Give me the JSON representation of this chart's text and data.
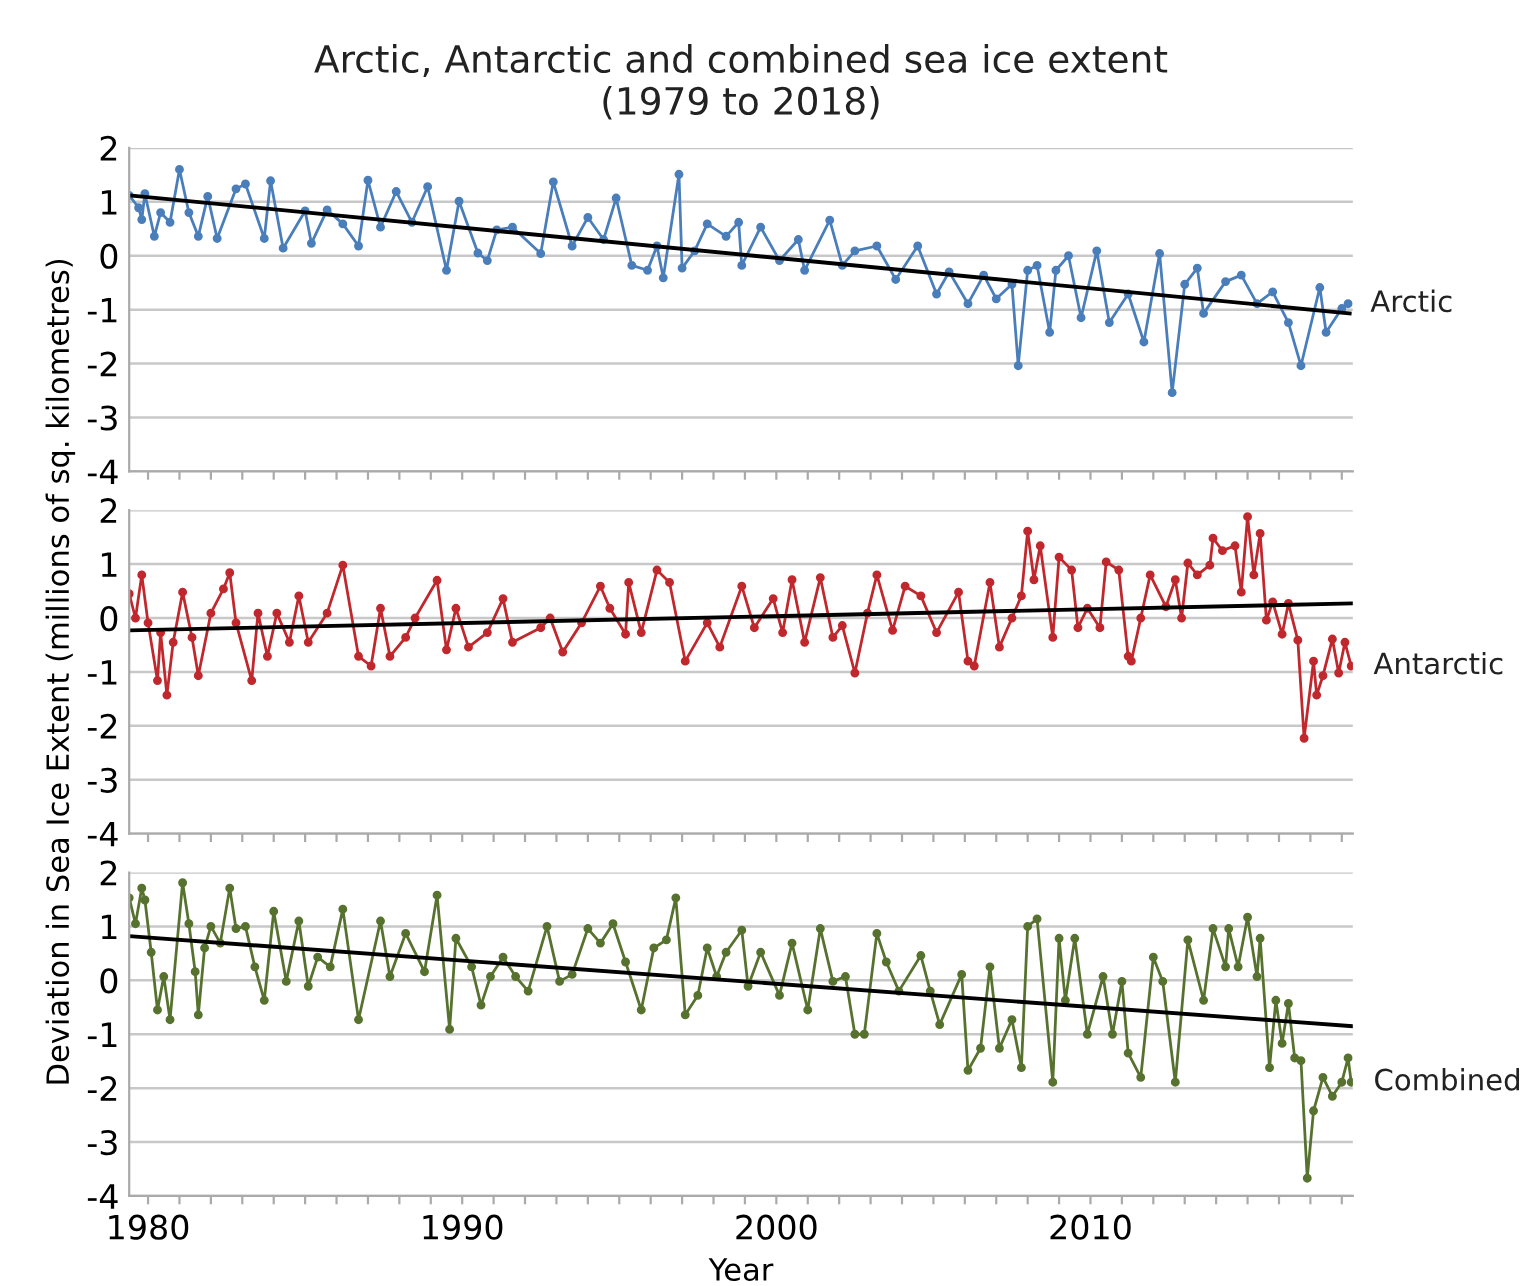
{
  "chart_data": [
    {
      "type": "line",
      "title": "Arctic, Antarctic and combined sea ice extent\n(1979 to 2018)",
      "xlim": [
        1979.4,
        2018.35
      ],
      "ylim": [
        -4,
        2
      ],
      "yticks": [
        -4,
        -3,
        -2,
        -1,
        0,
        1,
        2
      ],
      "xticks": [
        {
          "value": 1980,
          "label": null
        },
        {
          "value": 1981,
          "label": null
        },
        {
          "value": 1982,
          "label": null
        },
        {
          "value": 1983,
          "label": null
        },
        {
          "value": 1984,
          "label": null
        },
        {
          "value": 1985,
          "label": null
        },
        {
          "value": 1986,
          "label": null
        },
        {
          "value": 1987,
          "label": null
        },
        {
          "value": 1988,
          "label": null
        },
        {
          "value": 1989,
          "label": null
        },
        {
          "value": 1990,
          "label": null
        },
        {
          "value": 1991,
          "label": null
        },
        {
          "value": 1992,
          "label": null
        },
        {
          "value": 1993,
          "label": null
        },
        {
          "value": 1994,
          "label": null
        },
        {
          "value": 1995,
          "label": null
        },
        {
          "value": 1996,
          "label": null
        },
        {
          "value": 1997,
          "label": null
        },
        {
          "value": 1998,
          "label": null
        },
        {
          "value": 1999,
          "label": null
        },
        {
          "value": 2000,
          "label": null
        },
        {
          "value": 2001,
          "label": null
        },
        {
          "value": 2002,
          "label": null
        },
        {
          "value": 2003,
          "label": null
        },
        {
          "value": 2004,
          "label": null
        },
        {
          "value": 2005,
          "label": null
        },
        {
          "value": 2006,
          "label": null
        },
        {
          "value": 2007,
          "label": null
        },
        {
          "value": 2008,
          "label": null
        },
        {
          "value": 2009,
          "label": null
        },
        {
          "value": 2010,
          "label": null
        },
        {
          "value": 2011,
          "label": null
        },
        {
          "value": 2012,
          "label": null
        },
        {
          "value": 2013,
          "label": null
        },
        {
          "value": 2014,
          "label": null
        },
        {
          "value": 2015,
          "label": null
        },
        {
          "value": 2016,
          "label": null
        },
        {
          "value": 2017,
          "label": null
        },
        {
          "value": 2018,
          "label": null
        }
      ],
      "tick_labels": "y",
      "grid": "y",
      "legend": false,
      "series": [
        {
          "name": "Arctic",
          "color": "#4a7ebb",
          "marker": "circle",
          "x": [
            1979.4,
            1979.7,
            1979.8,
            1979.9,
            1980.2,
            1980.4,
            1980.7,
            1981.0,
            1981.3,
            1981.6,
            1981.9,
            1982.2,
            1982.8,
            1983.1,
            1983.7,
            1983.9,
            1984.3,
            1985.0,
            1985.2,
            1985.7,
            1986.2,
            1986.7,
            1987.0,
            1987.4,
            1987.9,
            1988.4,
            1988.9,
            1989.5,
            1989.9,
            1990.5,
            1990.8,
            1991.1,
            1991.6,
            1992.5,
            1992.9,
            1993.5,
            1994.0,
            1994.5,
            1994.9,
            1995.4,
            1995.9,
            1996.2,
            1996.4,
            1996.9,
            1997.0,
            1997.4,
            1997.8,
            1998.4,
            1998.8,
            1998.9,
            1999.5,
            2000.1,
            2000.7,
            2000.9,
            2001.7,
            2002.1,
            2002.5,
            2003.2,
            2003.8,
            2004.5,
            2005.1,
            2005.5,
            2006.1,
            2006.6,
            2007.0,
            2007.5,
            2007.7,
            2008.0,
            2008.3,
            2008.7,
            2008.9,
            2009.3,
            2009.7,
            2010.2,
            2010.6,
            2011.2,
            2011.7,
            2012.2,
            2012.6,
            2013.0,
            2013.4,
            2013.6,
            2014.3,
            2014.8,
            2015.3,
            2015.8,
            2016.3,
            2016.7,
            2017.3,
            2017.5,
            2018.0,
            2018.2
          ],
          "values": [
            1.12,
            0.89,
            0.67,
            1.15,
            0.36,
            0.8,
            0.62,
            1.6,
            0.8,
            0.36,
            1.1,
            0.32,
            1.24,
            1.33,
            0.32,
            1.39,
            0.14,
            0.83,
            0.23,
            0.85,
            0.59,
            0.18,
            1.4,
            0.53,
            1.19,
            0.62,
            1.28,
            -0.27,
            1.01,
            0.05,
            -0.09,
            0.48,
            0.53,
            0.04,
            1.37,
            0.18,
            0.71,
            0.3,
            1.07,
            -0.18,
            -0.27,
            0.18,
            -0.41,
            1.51,
            -0.23,
            0.09,
            0.59,
            0.36,
            0.62,
            -0.18,
            0.53,
            -0.09,
            0.3,
            -0.27,
            0.66,
            -0.18,
            0.09,
            0.18,
            -0.44,
            0.18,
            -0.71,
            -0.3,
            -0.89,
            -0.36,
            -0.8,
            -0.53,
            -2.04,
            -0.27,
            -0.18,
            -1.42,
            -0.27,
            0,
            -1.15,
            0.09,
            -1.24,
            -0.71,
            -1.6,
            0.04,
            -2.54,
            -0.53,
            -0.23,
            -1.07,
            -0.48,
            -0.36,
            -0.89,
            -0.67,
            -1.24,
            -2.04,
            -0.59,
            -1.42,
            -0.98,
            -0.89
          ]
        },
        {
          "type": "line",
          "color": "#000000",
          "marker": "none",
          "x": [
            1979.4,
            2018.25
          ],
          "values": [
            1.12,
            -1.07
          ]
        }
      ]
    },
    {
      "type": "line",
      "ylabel": "Deviation in Sea Ice Extent (millions of sq. kilometres)",
      "xlim": [
        1979.4,
        2018.35
      ],
      "ylim": [
        -4,
        2
      ],
      "yticks": [
        -4,
        -3,
        -2,
        -1,
        0,
        1,
        2
      ],
      "xticks": [
        {
          "value": 1980,
          "label": null
        },
        {
          "value": 1981,
          "label": null
        },
        {
          "value": 1982,
          "label": null
        },
        {
          "value": 1983,
          "label": null
        },
        {
          "value": 1984,
          "label": null
        },
        {
          "value": 1985,
          "label": null
        },
        {
          "value": 1986,
          "label": null
        },
        {
          "value": 1987,
          "label": null
        },
        {
          "value": 1988,
          "label": null
        },
        {
          "value": 1989,
          "label": null
        },
        {
          "value": 1990,
          "label": null
        },
        {
          "value": 1991,
          "label": null
        },
        {
          "value": 1992,
          "label": null
        },
        {
          "value": 1993,
          "label": null
        },
        {
          "value": 1994,
          "label": null
        },
        {
          "value": 1995,
          "label": null
        },
        {
          "value": 1996,
          "label": null
        },
        {
          "value": 1997,
          "label": null
        },
        {
          "value": 1998,
          "label": null
        },
        {
          "value": 1999,
          "label": null
        },
        {
          "value": 2000,
          "label": null
        },
        {
          "value": 2001,
          "label": null
        },
        {
          "value": 2002,
          "label": null
        },
        {
          "value": 2003,
          "label": null
        },
        {
          "value": 2004,
          "label": null
        },
        {
          "value": 2005,
          "label": null
        },
        {
          "value": 2006,
          "label": null
        },
        {
          "value": 2007,
          "label": null
        },
        {
          "value": 2008,
          "label": null
        },
        {
          "value": 2009,
          "label": null
        },
        {
          "value": 2010,
          "label": null
        },
        {
          "value": 2011,
          "label": null
        },
        {
          "value": 2012,
          "label": null
        },
        {
          "value": 2013,
          "label": null
        },
        {
          "value": 2014,
          "label": null
        },
        {
          "value": 2015,
          "label": null
        },
        {
          "value": 2016,
          "label": null
        },
        {
          "value": 2017,
          "label": null
        },
        {
          "value": 2018,
          "label": null
        }
      ],
      "tick_labels": "y",
      "grid": "y",
      "legend": false,
      "series": [
        {
          "name": "Antarctic",
          "color": "#c0282d",
          "marker": "circle",
          "x": [
            1979.4,
            1979.6,
            1979.8,
            1980.0,
            1980.3,
            1980.4,
            1980.6,
            1980.8,
            1981.1,
            1981.4,
            1981.6,
            1982.0,
            1982.4,
            1982.6,
            1982.8,
            1983.3,
            1983.5,
            1983.8,
            1984.1,
            1984.5,
            1984.8,
            1985.1,
            1985.7,
            1986.2,
            1986.7,
            1987.1,
            1987.4,
            1987.7,
            1988.2,
            1988.5,
            1989.2,
            1989.5,
            1989.8,
            1990.2,
            1990.8,
            1991.3,
            1991.6,
            1992.5,
            1992.8,
            1993.2,
            1993.8,
            1994.4,
            1994.7,
            1995.2,
            1995.3,
            1995.7,
            1996.2,
            1996.6,
            1997.1,
            1997.8,
            1998.2,
            1998.9,
            1999.3,
            1999.9,
            2000.2,
            2000.5,
            2000.9,
            2001.4,
            2001.8,
            2002.1,
            2002.5,
            2002.9,
            2003.2,
            2003.7,
            2004.1,
            2004.6,
            2005.1,
            2005.8,
            2006.1,
            2006.3,
            2006.8,
            2007.1,
            2007.5,
            2007.8,
            2008.0,
            2008.2,
            2008.4,
            2008.8,
            2009.0,
            2009.4,
            2009.6,
            2009.9,
            2010.3,
            2010.5,
            2010.9,
            2011.2,
            2011.3,
            2011.6,
            2011.9,
            2012.4,
            2012.7,
            2012.9,
            2013.1,
            2013.4,
            2013.8,
            2013.9,
            2014.2,
            2014.6,
            2014.8,
            2015.0,
            2015.2,
            2015.4,
            2015.6,
            2015.8,
            2016.1,
            2016.3,
            2016.6,
            2016.8,
            2017.1,
            2017.2,
            2017.4,
            2017.7,
            2017.9,
            2018.1,
            2018.3
          ],
          "values": [
            0.45,
            0,
            0.8,
            -0.09,
            -1.16,
            -0.27,
            -1.43,
            -0.45,
            0.48,
            -0.36,
            -1.07,
            0.09,
            0.54,
            0.84,
            -0.09,
            -1.16,
            0.09,
            -0.71,
            0.09,
            -0.45,
            0.41,
            -0.45,
            0.09,
            0.98,
            -0.71,
            -0.89,
            0.18,
            -0.71,
            -0.36,
            0,
            0.7,
            -0.59,
            0.18,
            -0.54,
            -0.27,
            0.36,
            -0.45,
            -0.18,
            0,
            -0.63,
            -0.09,
            0.59,
            0.18,
            -0.3,
            0.66,
            -0.27,
            0.89,
            0.66,
            -0.8,
            -0.09,
            -0.54,
            0.59,
            -0.18,
            0.36,
            -0.27,
            0.71,
            -0.45,
            0.75,
            -0.36,
            -0.14,
            -1.02,
            0.09,
            0.8,
            -0.23,
            0.59,
            0.41,
            -0.27,
            0.48,
            -0.8,
            -0.89,
            0.66,
            -0.54,
            0,
            0.41,
            1.61,
            0.71,
            1.34,
            -0.36,
            1.13,
            0.89,
            -0.18,
            0.18,
            -0.18,
            1.04,
            0.89,
            -0.71,
            -0.8,
            0,
            0.8,
            0.21,
            0.71,
            0,
            1.02,
            0.8,
            0.98,
            1.48,
            1.25,
            1.34,
            0.48,
            1.88,
            0.8,
            1.57,
            -0.04,
            0.3,
            -0.3,
            0.27,
            -0.41,
            -2.23,
            -0.8,
            -1.43,
            -1.07,
            -0.39,
            -1.02,
            -0.45,
            -0.89
          ]
        },
        {
          "type": "line",
          "color": "#000000",
          "marker": "none",
          "x": [
            1979.4,
            2018.3
          ],
          "values": [
            -0.23,
            0.27
          ]
        }
      ]
    },
    {
      "type": "line",
      "xlabel": "Year",
      "xlim": [
        1979.4,
        2018.35
      ],
      "ylim": [
        -4,
        2
      ],
      "yticks": [
        -4,
        -3,
        -2,
        -1,
        0,
        1,
        2
      ],
      "xticks": [
        1980,
        {
          "value": 1981,
          "label": null
        },
        {
          "value": 1982,
          "label": null
        },
        {
          "value": 1983,
          "label": null
        },
        {
          "value": 1984,
          "label": null
        },
        {
          "value": 1985,
          "label": null
        },
        {
          "value": 1986,
          "label": null
        },
        {
          "value": 1987,
          "label": null
        },
        {
          "value": 1988,
          "label": null
        },
        {
          "value": 1989,
          "label": null
        },
        1990,
        {
          "value": 1991,
          "label": null
        },
        {
          "value": 1992,
          "label": null
        },
        {
          "value": 1993,
          "label": null
        },
        {
          "value": 1994,
          "label": null
        },
        {
          "value": 1995,
          "label": null
        },
        {
          "value": 1996,
          "label": null
        },
        {
          "value": 1997,
          "label": null
        },
        {
          "value": 1998,
          "label": null
        },
        {
          "value": 1999,
          "label": null
        },
        2000,
        {
          "value": 2001,
          "label": null
        },
        {
          "value": 2002,
          "label": null
        },
        {
          "value": 2003,
          "label": null
        },
        {
          "value": 2004,
          "label": null
        },
        {
          "value": 2005,
          "label": null
        },
        {
          "value": 2006,
          "label": null
        },
        {
          "value": 2007,
          "label": null
        },
        {
          "value": 2008,
          "label": null
        },
        {
          "value": 2009,
          "label": null
        },
        2010,
        {
          "value": 2011,
          "label": null
        },
        {
          "value": 2012,
          "label": null
        },
        {
          "value": 2013,
          "label": null
        },
        {
          "value": 2014,
          "label": null
        },
        {
          "value": 2015,
          "label": null
        },
        {
          "value": 2016,
          "label": null
        },
        {
          "value": 2017,
          "label": null
        },
        {
          "value": 2018,
          "label": null
        }
      ],
      "grid": "y",
      "legend": false,
      "series": [
        {
          "name": "Combined",
          "color": "#56722e",
          "marker": "circle",
          "x": [
            1979.4,
            1979.6,
            1979.8,
            1979.9,
            1980.1,
            1980.3,
            1980.5,
            1980.7,
            1981.1,
            1981.3,
            1981.5,
            1981.6,
            1981.8,
            1982.0,
            1982.3,
            1982.6,
            1982.8,
            1983.1,
            1983.4,
            1983.7,
            1984.0,
            1984.4,
            1984.8,
            1985.1,
            1985.4,
            1985.8,
            1986.2,
            1986.7,
            1987.4,
            1987.7,
            1988.2,
            1988.8,
            1989.2,
            1989.6,
            1989.8,
            1990.3,
            1990.6,
            1990.9,
            1991.3,
            1991.7,
            1992.1,
            1992.7,
            1993.1,
            1993.5,
            1994.0,
            1994.4,
            1994.8,
            1995.2,
            1995.7,
            1996.1,
            1996.5,
            1996.8,
            1997.1,
            1997.5,
            1997.8,
            1998.1,
            1998.4,
            1998.9,
            1999.1,
            1999.5,
            2000.1,
            2000.5,
            2001.0,
            2001.4,
            2001.8,
            2002.2,
            2002.5,
            2002.8,
            2003.2,
            2003.5,
            2003.9,
            2004.6,
            2004.9,
            2005.2,
            2005.9,
            2006.1,
            2006.5,
            2006.8,
            2007.1,
            2007.5,
            2007.8,
            2008.0,
            2008.3,
            2008.8,
            2009.0,
            2009.2,
            2009.5,
            2009.9,
            2010.4,
            2010.7,
            2011.0,
            2011.2,
            2011.6,
            2012.0,
            2012.3,
            2012.7,
            2013.1,
            2013.6,
            2013.9,
            2014.3,
            2014.4,
            2014.7,
            2015.0,
            2015.3,
            2015.4,
            2015.7,
            2015.9,
            2016.1,
            2016.3,
            2016.5,
            2016.7,
            2016.9,
            2017.1,
            2017.4,
            2017.7,
            2018.0,
            2018.2,
            2018.3
          ],
          "values": [
            1.53,
            1.05,
            1.71,
            1.49,
            0.52,
            -0.55,
            0.07,
            -0.73,
            1.81,
            1.05,
            0.16,
            -0.64,
            0.6,
            1.0,
            0.69,
            1.71,
            0.96,
            1.0,
            0.25,
            -0.37,
            1.28,
            -0.02,
            1.1,
            -0.11,
            0.43,
            0.25,
            1.32,
            -0.73,
            1.1,
            0.07,
            0.87,
            0.16,
            1.58,
            -0.91,
            0.78,
            0.25,
            -0.46,
            0.07,
            0.43,
            0.07,
            -0.2,
            1.0,
            -0.02,
            0.11,
            0.96,
            0.69,
            1.05,
            0.34,
            -0.55,
            0.6,
            0.75,
            1.53,
            -0.64,
            -0.28,
            0.6,
            0.07,
            0.52,
            0.93,
            -0.11,
            0.52,
            -0.28,
            0.69,
            -0.55,
            0.96,
            -0.02,
            0.07,
            -1.0,
            -1.0,
            0.87,
            0.34,
            -0.2,
            0.46,
            -0.2,
            -0.82,
            0.11,
            -1.67,
            -1.26,
            0.25,
            -1.26,
            -0.73,
            -1.62,
            1.0,
            1.14,
            -1.89,
            0.78,
            -0.37,
            0.78,
            -1.0,
            0.07,
            -1.0,
            -0.02,
            -1.35,
            -1.8,
            0.43,
            -0.02,
            -1.89,
            0.75,
            -0.37,
            0.96,
            0.25,
            0.96,
            0.25,
            1.17,
            0.07,
            0.78,
            -1.62,
            -0.37,
            -1.17,
            -0.43,
            -1.44,
            -1.49,
            -3.67,
            -2.42,
            -1.8,
            -2.15,
            -1.89,
            -1.44,
            -1.89
          ]
        },
        {
          "type": "line",
          "color": "#000000",
          "marker": "none",
          "x": [
            1979.4,
            2018.3
          ],
          "values": [
            0.82,
            -0.85
          ]
        }
      ]
    }
  ]
}
